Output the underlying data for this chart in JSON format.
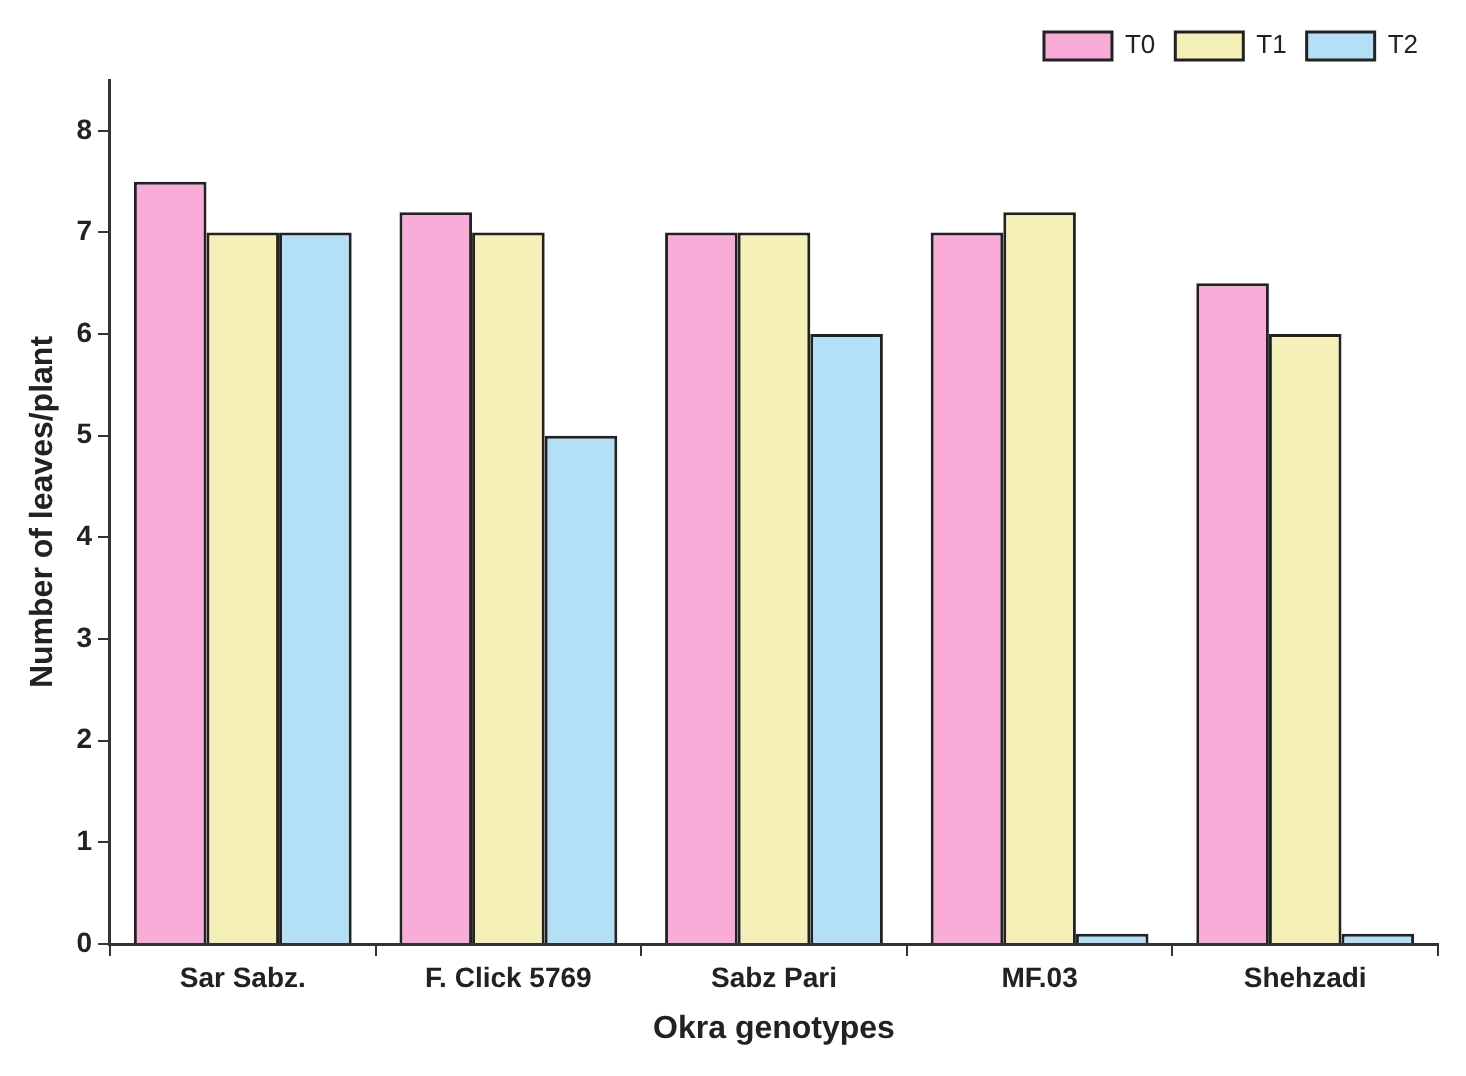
{
  "chart_data": {
    "type": "bar",
    "xlabel": "Okra genotypes",
    "ylabel": "Number of leaves/plant",
    "categories": [
      "Sar Sabz.",
      "F. Click 5769",
      "Sabz Pari",
      "MF.03",
      "Shehzadi"
    ],
    "series": [
      {
        "name": "T0",
        "color": "#f9acd8",
        "values": [
          7.5,
          7.2,
          7,
          7,
          6.5
        ]
      },
      {
        "name": "T1",
        "color": "#f5f0b8",
        "values": [
          7,
          7,
          7,
          7.2,
          6
        ]
      },
      {
        "name": "T2",
        "color": "#b3e0f7",
        "values": [
          7,
          5,
          6,
          0.1,
          0.1
        ]
      }
    ],
    "ylim": [
      0,
      8.5
    ],
    "yticks": [
      0,
      1,
      2,
      3,
      4,
      5,
      6,
      7,
      8
    ],
    "grid": false,
    "legend": "top right"
  }
}
